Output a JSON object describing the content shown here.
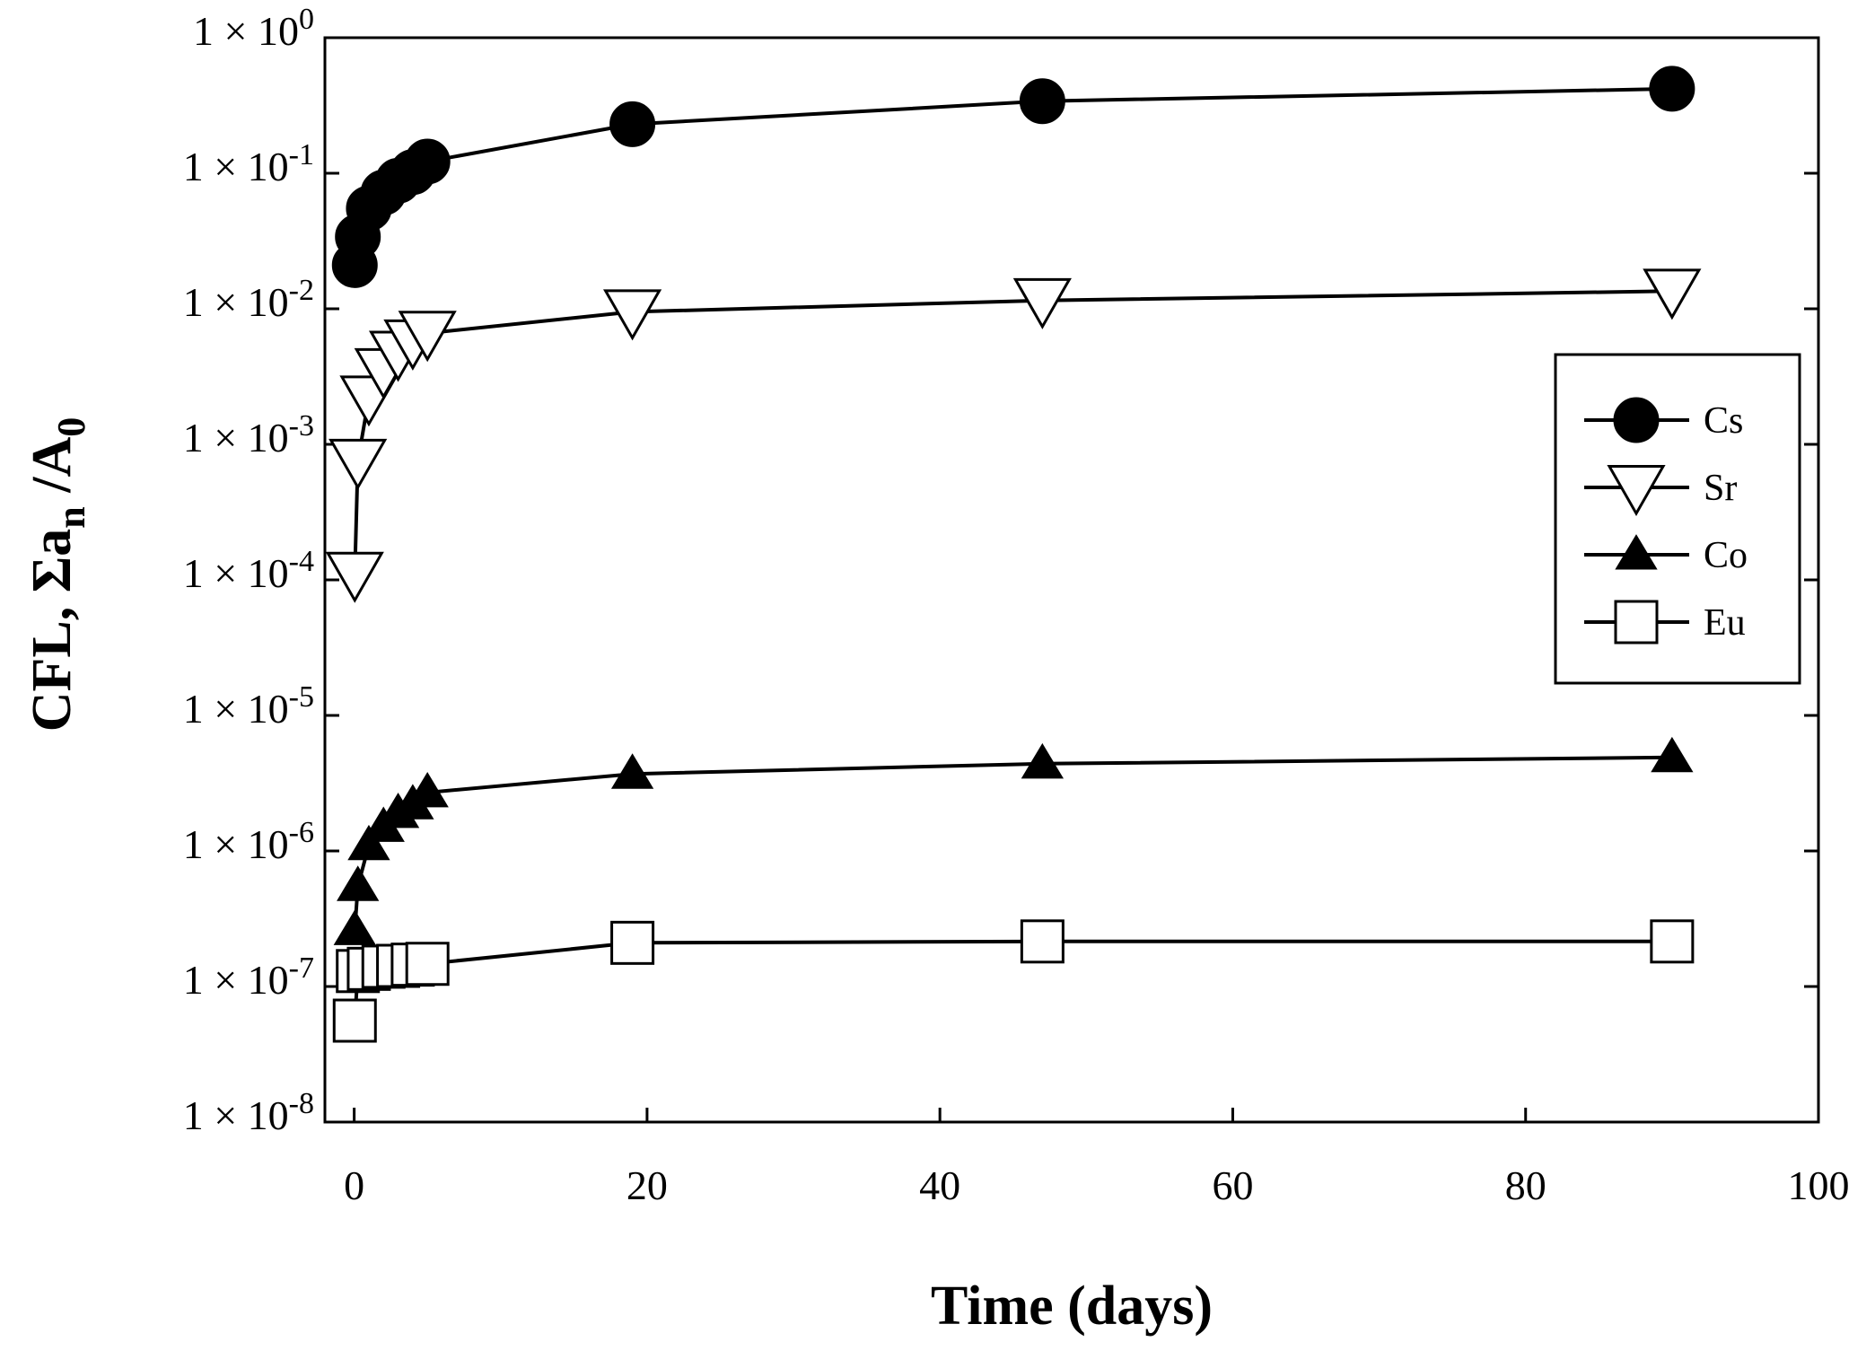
{
  "chart_data": {
    "type": "scatter",
    "title": "",
    "xlabel": "Time (days)",
    "ylabel": {
      "prefix": "CFL, Σa",
      "sub1": "n",
      "mid": " /A",
      "sub2": "0"
    },
    "xlim": [
      -2,
      100
    ],
    "ylim": [
      1e-08,
      1
    ],
    "yscale": "log",
    "x_ticks": [
      {
        "value": 0,
        "label": "0"
      },
      {
        "value": 20,
        "label": "20"
      },
      {
        "value": 40,
        "label": "40"
      },
      {
        "value": 60,
        "label": "60"
      },
      {
        "value": 80,
        "label": "80"
      },
      {
        "value": 100,
        "label": "100"
      }
    ],
    "y_ticks": [
      {
        "exp": 0,
        "base": "1 × 10",
        "sup": "0"
      },
      {
        "exp": -1,
        "base": "1 × 10",
        "sup": "-1"
      },
      {
        "exp": -2,
        "base": "1 × 10",
        "sup": "-2"
      },
      {
        "exp": -3,
        "base": "1 × 10",
        "sup": "-3"
      },
      {
        "exp": -4,
        "base": "1 × 10",
        "sup": "-4"
      },
      {
        "exp": -5,
        "base": "1 × 10",
        "sup": "-5"
      },
      {
        "exp": -6,
        "base": "1 × 10",
        "sup": "-6"
      },
      {
        "exp": -7,
        "base": "1 × 10",
        "sup": "-7"
      },
      {
        "exp": -8,
        "base": "1 × 10",
        "sup": "-8"
      }
    ],
    "legend_position": "right",
    "series": [
      {
        "name": "Cs",
        "marker": "filled-circle",
        "x": [
          0.04,
          0.25,
          1,
          2,
          3,
          4,
          5,
          19,
          47,
          90
        ],
        "y": [
          0.021,
          0.034,
          0.055,
          0.072,
          0.088,
          0.102,
          0.122,
          0.23,
          0.34,
          0.42
        ]
      },
      {
        "name": "Sr",
        "marker": "open-down-triangle",
        "x": [
          0.04,
          0.25,
          1,
          2,
          3,
          4,
          5,
          19,
          47,
          90
        ],
        "y": [
          0.00011,
          0.00075,
          0.0022,
          0.0035,
          0.0047,
          0.0057,
          0.0066,
          0.0095,
          0.0115,
          0.0135
        ]
      },
      {
        "name": "Co",
        "marker": "filled-up-triangle",
        "x": [
          0.04,
          0.25,
          1,
          2,
          3,
          4,
          5,
          19,
          47,
          90
        ],
        "y": [
          2.6e-07,
          5.5e-07,
          1.1e-06,
          1.5e-06,
          1.9e-06,
          2.2e-06,
          2.7e-06,
          3.7e-06,
          4.4e-06,
          4.9e-06
        ]
      },
      {
        "name": "Eu",
        "marker": "open-square",
        "x": [
          0.04,
          0.25,
          1,
          2,
          3,
          4,
          5,
          19,
          47,
          90
        ],
        "y": [
          5.6e-08,
          1.3e-07,
          1.35e-07,
          1.4e-07,
          1.42e-07,
          1.45e-07,
          1.47e-07,
          2.1e-07,
          2.15e-07,
          2.15e-07
        ]
      }
    ]
  }
}
